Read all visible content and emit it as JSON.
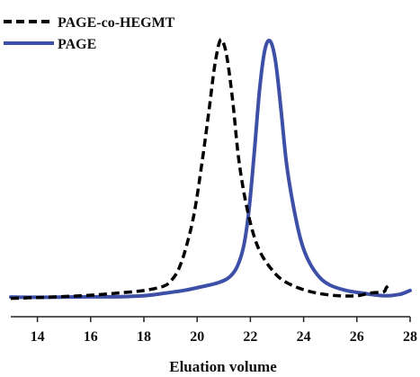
{
  "chart_data": {
    "type": "line",
    "title": "",
    "xlabel": "Eluation volume",
    "ylabel": "",
    "xlim": [
      13,
      28
    ],
    "ylim": [
      -0.07,
      1.0
    ],
    "x_ticks": [
      14,
      16,
      18,
      20,
      22,
      24,
      26,
      28
    ],
    "grid": false,
    "legend_position": "top-left",
    "series": [
      {
        "name": "PAGE-co-HEGMT",
        "color": "#000000",
        "style": "dashed",
        "points": [
          [
            13.0,
            0.0
          ],
          [
            14.0,
            0.003
          ],
          [
            15.0,
            0.007
          ],
          [
            16.0,
            0.012
          ],
          [
            17.0,
            0.02
          ],
          [
            18.0,
            0.03
          ],
          [
            18.7,
            0.045
          ],
          [
            19.0,
            0.065
          ],
          [
            19.3,
            0.11
          ],
          [
            19.6,
            0.2
          ],
          [
            19.9,
            0.33
          ],
          [
            20.2,
            0.53
          ],
          [
            20.45,
            0.72
          ],
          [
            20.65,
            0.88
          ],
          [
            20.85,
            0.98
          ],
          [
            21.0,
            0.97
          ],
          [
            21.15,
            0.9
          ],
          [
            21.35,
            0.74
          ],
          [
            21.55,
            0.54
          ],
          [
            21.8,
            0.38
          ],
          [
            22.1,
            0.25
          ],
          [
            22.4,
            0.17
          ],
          [
            22.8,
            0.11
          ],
          [
            23.2,
            0.07
          ],
          [
            23.8,
            0.04
          ],
          [
            24.5,
            0.02
          ],
          [
            25.3,
            0.01
          ],
          [
            26.0,
            0.01
          ],
          [
            26.5,
            0.02
          ],
          [
            27.0,
            0.025
          ],
          [
            27.1,
            0.04
          ],
          [
            27.2,
            0.05
          ]
        ]
      },
      {
        "name": "PAGE",
        "color": "#3d4fa6",
        "style": "solid",
        "points": [
          [
            13.0,
            0.005
          ],
          [
            14.0,
            0.004
          ],
          [
            15.0,
            0.005
          ],
          [
            16.0,
            0.006
          ],
          [
            17.0,
            0.006
          ],
          [
            18.0,
            0.01
          ],
          [
            18.8,
            0.02
          ],
          [
            19.5,
            0.03
          ],
          [
            20.2,
            0.045
          ],
          [
            20.8,
            0.06
          ],
          [
            21.2,
            0.08
          ],
          [
            21.5,
            0.12
          ],
          [
            21.75,
            0.2
          ],
          [
            21.95,
            0.34
          ],
          [
            22.15,
            0.56
          ],
          [
            22.35,
            0.8
          ],
          [
            22.55,
            0.95
          ],
          [
            22.75,
            0.98
          ],
          [
            22.95,
            0.9
          ],
          [
            23.15,
            0.72
          ],
          [
            23.35,
            0.52
          ],
          [
            23.6,
            0.36
          ],
          [
            23.9,
            0.22
          ],
          [
            24.2,
            0.14
          ],
          [
            24.6,
            0.08
          ],
          [
            25.0,
            0.05
          ],
          [
            25.6,
            0.03
          ],
          [
            26.2,
            0.02
          ],
          [
            27.0,
            0.01
          ],
          [
            27.6,
            0.015
          ],
          [
            28.0,
            0.03
          ]
        ]
      }
    ]
  }
}
